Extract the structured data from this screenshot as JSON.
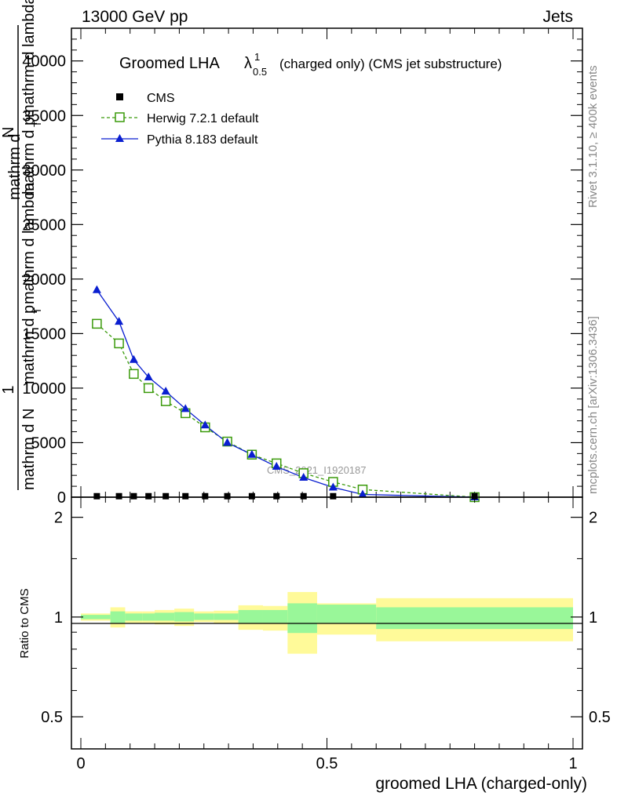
{
  "header": {
    "left": "13000 GeV pp",
    "right": "Jets"
  },
  "side": {
    "rivet": "Rivet 3.1.10, ≥ 400k events",
    "mcplots": "mcplots.cern.ch [arXiv:1306.3436]"
  },
  "title": {
    "main": "Groomed LHA ",
    "lambda": "λ",
    "sup": "1",
    "sub": "0.5",
    "rest": "(charged only) (CMS jet substructure)"
  },
  "watermark": "CMS_2021_I1920187",
  "ylabel_main": {
    "one": "1",
    "den": "mathrm d N",
    "num_top": "mathrm d",
    "num_top2": "N",
    "num_mid": "mathrm d p",
    "num_mid_sub": "T",
    "num_mid2": "mathrm d lambda",
    "den2": "mathrm d p",
    "den2_sub": "T",
    "den3": "mathrm d lambda"
  },
  "ylabel_ratio": "Ratio to CMS",
  "xlabel": "groomed LHA (charged-only)",
  "legend": [
    {
      "name": "CMS",
      "color": "#000000"
    },
    {
      "name": "Herwig 7.2.1 default",
      "color": "#3a9a0a"
    },
    {
      "name": "Pythia 8.183 default",
      "color": "#0a1fd0"
    }
  ],
  "chart_data": [
    {
      "type": "line",
      "xlim": [
        0,
        1
      ],
      "ylim": [
        0,
        43000
      ],
      "yticks": [
        0,
        5000,
        10000,
        15000,
        20000,
        25000,
        30000,
        35000,
        40000
      ],
      "ytick_labels": [
        "0",
        "5000",
        "10000",
        "15000",
        "20000",
        "25000",
        "30000",
        "35000",
        "40000"
      ],
      "x": [
        0.0325,
        0.0775,
        0.1075,
        0.1375,
        0.1725,
        0.2125,
        0.2525,
        0.2975,
        0.3475,
        0.3975,
        0.4525,
        0.5125,
        0.5725,
        0.8
      ],
      "series": [
        {
          "name": "CMS",
          "values": [
            90,
            90,
            90,
            90,
            90,
            90,
            90,
            90,
            90,
            90,
            90,
            90,
            null,
            90
          ]
        },
        {
          "name": "Herwig 7.2.1 default",
          "values": [
            15900,
            14100,
            11300,
            10000,
            8800,
            7700,
            6400,
            5100,
            3900,
            3100,
            2200,
            1400,
            700,
            0
          ]
        },
        {
          "name": "Pythia 8.183 default",
          "values": [
            19000,
            16100,
            12600,
            11000,
            9700,
            8100,
            6600,
            5000,
            3900,
            2800,
            1800,
            900,
            250,
            0
          ]
        }
      ],
      "grid": false,
      "legend_position": "top-left"
    },
    {
      "type": "area",
      "xlim": [
        0,
        1
      ],
      "ylim": [
        0.4,
        2.3
      ],
      "scale": "log",
      "yticks": [
        0.5,
        1,
        2
      ],
      "ytick_labels": [
        "0.5",
        "1",
        "2"
      ],
      "xticks": [
        0,
        0.5,
        1
      ],
      "xtick_labels": [
        "0",
        "0.5",
        "1"
      ],
      "bins": [
        {
          "x": [
            0.0,
            0.06
          ],
          "band1": [
            0.985,
            1.015
          ],
          "band2": [
            0.975,
            1.025
          ]
        },
        {
          "x": [
            0.06,
            0.09
          ],
          "band1": [
            0.96,
            1.04
          ],
          "band2": [
            0.93,
            1.07
          ]
        },
        {
          "x": [
            0.09,
            0.125
          ],
          "band1": [
            0.975,
            1.025
          ],
          "band2": [
            0.96,
            1.04
          ]
        },
        {
          "x": [
            0.125,
            0.15
          ],
          "band1": [
            0.975,
            1.025
          ],
          "band2": [
            0.96,
            1.04
          ]
        },
        {
          "x": [
            0.15,
            0.19
          ],
          "band1": [
            0.975,
            1.03
          ],
          "band2": [
            0.95,
            1.05
          ]
        },
        {
          "x": [
            0.19,
            0.23
          ],
          "band1": [
            0.97,
            1.035
          ],
          "band2": [
            0.94,
            1.06
          ]
        },
        {
          "x": [
            0.23,
            0.27
          ],
          "band1": [
            0.98,
            1.025
          ],
          "band2": [
            0.965,
            1.04
          ]
        },
        {
          "x": [
            0.27,
            0.32
          ],
          "band1": [
            0.98,
            1.025
          ],
          "band2": [
            0.955,
            1.045
          ]
        },
        {
          "x": [
            0.32,
            0.37
          ],
          "band1": [
            0.96,
            1.05
          ],
          "band2": [
            0.915,
            1.085
          ]
        },
        {
          "x": [
            0.37,
            0.42
          ],
          "band1": [
            0.96,
            1.05
          ],
          "band2": [
            0.91,
            1.08
          ]
        },
        {
          "x": [
            0.42,
            0.48
          ],
          "band1": [
            0.895,
            1.1
          ],
          "band2": [
            0.775,
            1.19
          ]
        },
        {
          "x": [
            0.48,
            0.6
          ],
          "band1": [
            0.96,
            1.09
          ],
          "band2": [
            0.885,
            1.1
          ]
        },
        {
          "x": [
            0.6,
            1.0
          ],
          "band1": [
            0.92,
            1.07
          ],
          "band2": [
            0.845,
            1.14
          ]
        }
      ]
    }
  ],
  "colors": {
    "band_inner": "#99f799",
    "band_outer": "#fffa99",
    "herwig": "#3a9a0a",
    "pythia": "#0a1fd0"
  }
}
